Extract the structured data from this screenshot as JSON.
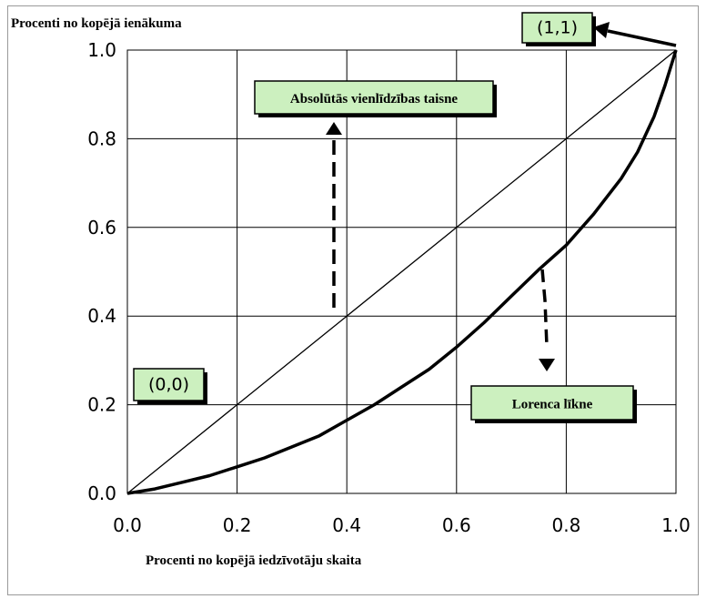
{
  "chart_data": {
    "type": "line",
    "ylabel": "Procenti no kopējā ienākuma",
    "xlabel": "Procenti no kopējā iedzīvotāju skaita",
    "xlim": [
      0,
      1
    ],
    "ylim": [
      0,
      1
    ],
    "x_ticks": [
      "0.0",
      "0.2",
      "0.4",
      "0.6",
      "0.8",
      "1.0"
    ],
    "y_ticks": [
      "0.0",
      "0.2",
      "0.4",
      "0.6",
      "0.8",
      "1.0"
    ],
    "grid": true,
    "series": [
      {
        "name": "Absolūtās vienlīdzības taisne",
        "x": [
          0.0,
          0.2,
          0.4,
          0.6,
          0.8,
          1.0
        ],
        "y": [
          0.0,
          0.2,
          0.4,
          0.6,
          0.8,
          1.0
        ]
      },
      {
        "name": "Lorenca līkne",
        "x": [
          0.0,
          0.05,
          0.1,
          0.15,
          0.2,
          0.25,
          0.3,
          0.35,
          0.4,
          0.45,
          0.5,
          0.55,
          0.6,
          0.65,
          0.7,
          0.75,
          0.8,
          0.85,
          0.9,
          0.93,
          0.96,
          0.98,
          1.0
        ],
        "y": [
          0.0,
          0.01,
          0.025,
          0.04,
          0.06,
          0.08,
          0.105,
          0.13,
          0.165,
          0.2,
          0.24,
          0.28,
          0.33,
          0.385,
          0.445,
          0.505,
          0.56,
          0.63,
          0.71,
          0.77,
          0.85,
          0.92,
          1.0
        ]
      }
    ],
    "annotations": [
      {
        "text": "Absolūtās vienlīdzības taisne"
      },
      {
        "text": "Lorenca līkne"
      },
      {
        "text": "(0,0)"
      },
      {
        "text": "(1,1)"
      }
    ]
  },
  "colors": {
    "annotation_fill": "#ccf0bf",
    "axis": "#000000",
    "grid": "#000000"
  }
}
